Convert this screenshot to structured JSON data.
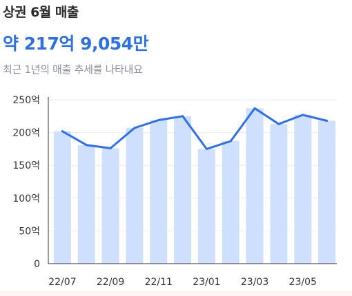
{
  "header": {
    "title": "상권 6월 매출",
    "amount": "약 217억 9,054만",
    "subtitle": "최근 1년의 매출 추세를 나타내요"
  },
  "colors": {
    "accent": "#2f6fe6",
    "bar": "#cfe0ff",
    "line": "#2e6ef0",
    "axis": "#333333",
    "grid": "#eeeeee"
  },
  "chart_data": {
    "type": "bar",
    "categories": [
      "22/07",
      "22/08",
      "22/09",
      "22/10",
      "22/11",
      "22/12",
      "23/01",
      "23/02",
      "23/03",
      "23/04",
      "23/05",
      "23/06"
    ],
    "x_tick_labels": [
      "22/07",
      "22/09",
      "22/11",
      "23/01",
      "23/03",
      "23/05"
    ],
    "series": [
      {
        "values": [
          202,
          181,
          176,
          207,
          219,
          225,
          175,
          187,
          237,
          213,
          227,
          218
        ]
      }
    ],
    "overlay_line": [
      202,
      181,
      176,
      207,
      219,
      225,
      175,
      187,
      237,
      213,
      227,
      218
    ],
    "y_tick_labels": [
      "0",
      "50억",
      "100억",
      "150억",
      "200억",
      "250억"
    ],
    "ylim": [
      0,
      250
    ],
    "yticks": [
      0,
      50,
      100,
      150,
      200,
      250
    ],
    "grid": true
  }
}
